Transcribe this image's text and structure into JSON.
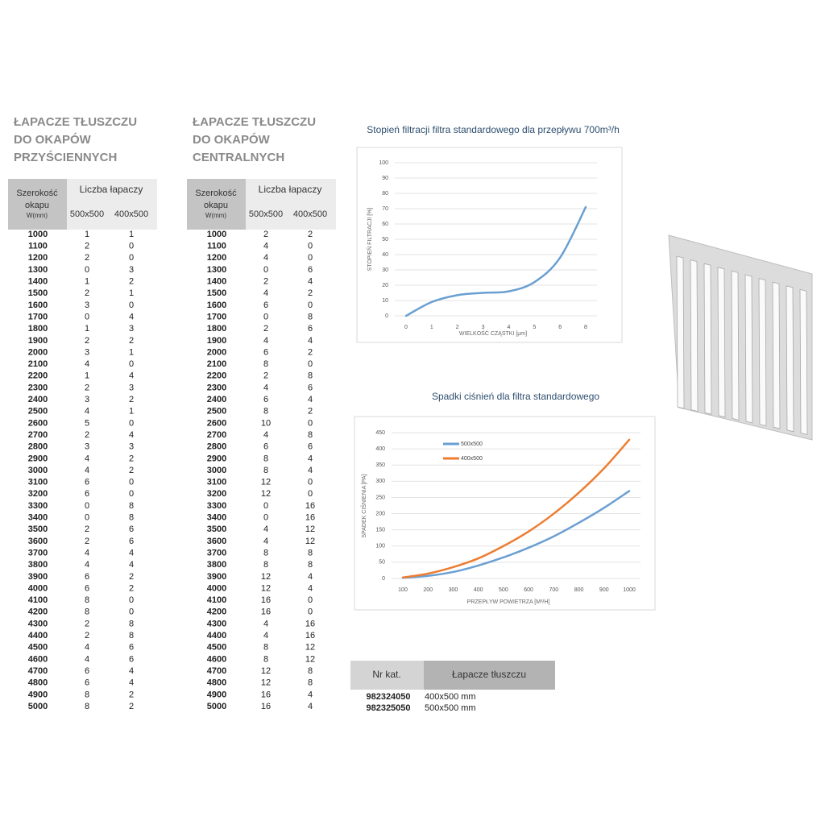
{
  "tables": [
    {
      "title": [
        "ŁAPACZE TŁUSZCZU",
        "DO OKAPÓW",
        "PRZYŚCIENNYCH"
      ],
      "header": {
        "width": [
          "Szerokość",
          "okapu"
        ],
        "unit": "W(mm)",
        "count": "Liczba łapaczy",
        "sizes": [
          "500x500",
          "400x500"
        ]
      },
      "rows": [
        [
          1000,
          1,
          1
        ],
        [
          1100,
          2,
          0
        ],
        [
          1200,
          2,
          0
        ],
        [
          1300,
          0,
          3
        ],
        [
          1400,
          1,
          2
        ],
        [
          1500,
          2,
          1
        ],
        [
          1600,
          3,
          0
        ],
        [
          1700,
          0,
          4
        ],
        [
          1800,
          1,
          3
        ],
        [
          1900,
          2,
          2
        ],
        [
          2000,
          3,
          1
        ],
        [
          2100,
          4,
          0
        ],
        [
          2200,
          1,
          4
        ],
        [
          2300,
          2,
          3
        ],
        [
          2400,
          3,
          2
        ],
        [
          2500,
          4,
          1
        ],
        [
          2600,
          5,
          0
        ],
        [
          2700,
          2,
          4
        ],
        [
          2800,
          3,
          3
        ],
        [
          2900,
          4,
          2
        ],
        [
          3000,
          4,
          2
        ],
        [
          3100,
          6,
          0
        ],
        [
          3200,
          6,
          0
        ],
        [
          3300,
          0,
          8
        ],
        [
          3400,
          0,
          8
        ],
        [
          3500,
          2,
          6
        ],
        [
          3600,
          2,
          6
        ],
        [
          3700,
          4,
          4
        ],
        [
          3800,
          4,
          4
        ],
        [
          3900,
          6,
          2
        ],
        [
          4000,
          6,
          2
        ],
        [
          4100,
          8,
          0
        ],
        [
          4200,
          8,
          0
        ],
        [
          4300,
          2,
          8
        ],
        [
          4400,
          2,
          8
        ],
        [
          4500,
          4,
          6
        ],
        [
          4600,
          4,
          6
        ],
        [
          4700,
          6,
          4
        ],
        [
          4800,
          6,
          4
        ],
        [
          4900,
          8,
          2
        ],
        [
          5000,
          8,
          2
        ]
      ]
    },
    {
      "title": [
        "ŁAPACZE TŁUSZCZU",
        "DO OKAPÓW",
        "CENTRALNYCH"
      ],
      "header": {
        "width": [
          "Szerokość",
          "okapu"
        ],
        "unit": "W(mm)",
        "count": "Liczba łapaczy",
        "sizes": [
          "500x500",
          "400x500"
        ]
      },
      "rows": [
        [
          1000,
          2,
          2
        ],
        [
          1100,
          4,
          0
        ],
        [
          1200,
          4,
          0
        ],
        [
          1300,
          0,
          6
        ],
        [
          1400,
          2,
          4
        ],
        [
          1500,
          4,
          2
        ],
        [
          1600,
          6,
          0
        ],
        [
          1700,
          0,
          8
        ],
        [
          1800,
          2,
          6
        ],
        [
          1900,
          4,
          4
        ],
        [
          2000,
          6,
          2
        ],
        [
          2100,
          8,
          0
        ],
        [
          2200,
          2,
          8
        ],
        [
          2300,
          4,
          6
        ],
        [
          2400,
          6,
          4
        ],
        [
          2500,
          8,
          2
        ],
        [
          2600,
          10,
          0
        ],
        [
          2700,
          4,
          8
        ],
        [
          2800,
          6,
          6
        ],
        [
          2900,
          8,
          4
        ],
        [
          3000,
          8,
          4
        ],
        [
          3100,
          12,
          0
        ],
        [
          3200,
          12,
          0
        ],
        [
          3300,
          0,
          16
        ],
        [
          3400,
          0,
          16
        ],
        [
          3500,
          4,
          12
        ],
        [
          3600,
          4,
          12
        ],
        [
          3700,
          8,
          8
        ],
        [
          3800,
          8,
          8
        ],
        [
          3900,
          12,
          4
        ],
        [
          4000,
          12,
          4
        ],
        [
          4100,
          16,
          0
        ],
        [
          4200,
          16,
          0
        ],
        [
          4300,
          4,
          16
        ],
        [
          4400,
          4,
          16
        ],
        [
          4500,
          8,
          12
        ],
        [
          4600,
          8,
          12
        ],
        [
          4700,
          12,
          8
        ],
        [
          4800,
          12,
          8
        ],
        [
          4900,
          16,
          4
        ],
        [
          5000,
          16,
          4
        ]
      ]
    }
  ],
  "chart_data": [
    {
      "type": "line",
      "title": "Stopień filtracji filtra standardowego dla przepływu 700m³/h",
      "x_label": "WIELKOŚĆ CZĄSTKI [μm]",
      "y_label": "STOPIEŃ FILTRACJI [%]",
      "categories": [
        "0",
        "1",
        "2",
        "3",
        "4",
        "5",
        "6",
        "8"
      ],
      "values": [
        0,
        9,
        13.5,
        15,
        16,
        22,
        38,
        71
      ],
      "color": "#6a9fd2",
      "ylim": [
        0,
        100
      ],
      "yticks": [
        0,
        10,
        20,
        30,
        40,
        50,
        60,
        70,
        80,
        90,
        100
      ],
      "grid": true
    },
    {
      "type": "line",
      "title": "Spadki ciśnień dla filtra standardowego",
      "x_label": "PRZEPŁYW POWIETRZA [M³/H]",
      "y_label": "SPADEK CIŚNIENIA [PA]",
      "categories": [
        "100",
        "200",
        "300",
        "400",
        "500",
        "600",
        "700",
        "800",
        "900",
        "1000"
      ],
      "series": [
        {
          "name": "500x500",
          "color": "#6a9fd2",
          "values": [
            2,
            8,
            20,
            40,
            65,
            95,
            130,
            172,
            218,
            270
          ]
        },
        {
          "name": "400x500",
          "color": "#ed7d31",
          "values": [
            3,
            15,
            35,
            62,
            100,
            145,
            200,
            265,
            340,
            428
          ]
        }
      ],
      "ylim": [
        0,
        450
      ],
      "yticks": [
        0,
        50,
        100,
        150,
        200,
        250,
        300,
        350,
        400,
        450
      ],
      "grid": true,
      "legend": "upper-left"
    }
  ],
  "catalog": {
    "headers": [
      "Nr kat.",
      "Łapacze tłuszczu"
    ],
    "rows": [
      [
        "982324050",
        "400x500 mm"
      ],
      [
        "982325050",
        "500x500 mm"
      ]
    ]
  }
}
